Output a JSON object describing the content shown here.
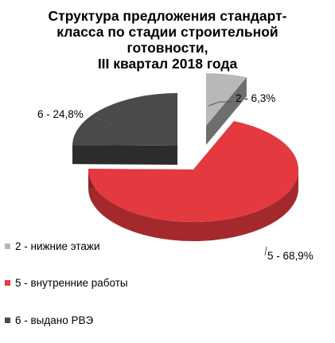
{
  "chart_data": {
    "type": "pie",
    "title_lines": [
      "Структура  предложения стандарт-",
      "класса по стадии строительной",
      "готовности,",
      "III квартал 2018 года"
    ],
    "slices": [
      {
        "name": "2 -  нижние этажи",
        "label": "2 - 6,3%",
        "value": 6.3,
        "color": "#b8b8b8"
      },
      {
        "name": "5 - внутренние работы",
        "label": "5 - 68,9%",
        "value": 68.9,
        "color": "#e4393f"
      },
      {
        "name": "6 - выдано РВЭ",
        "label": "6 - 24,8%",
        "value": 24.8,
        "color": "#4a4a4a"
      }
    ],
    "legend_position": "bottom-left",
    "style": "3d-exploded"
  }
}
